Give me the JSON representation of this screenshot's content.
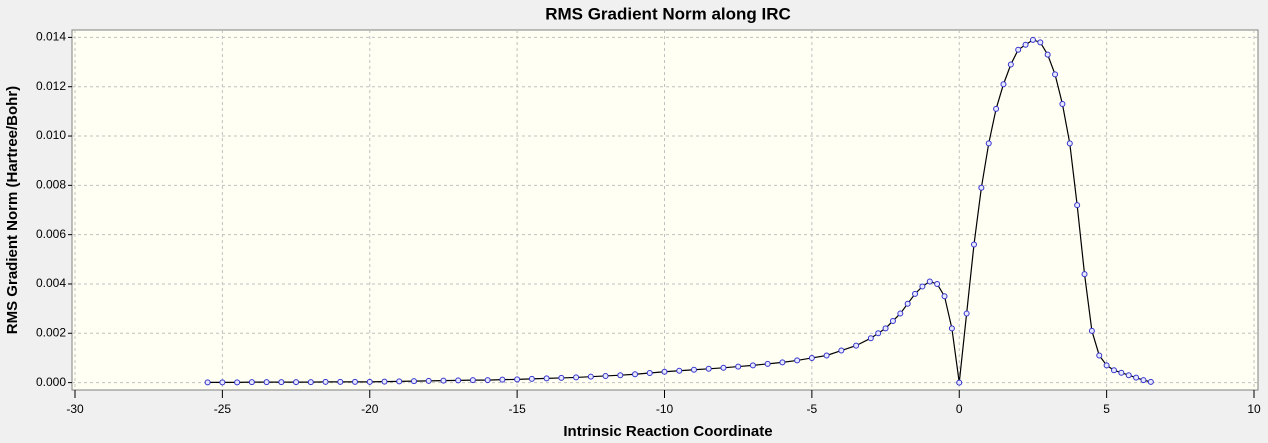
{
  "chart_data": {
    "type": "line",
    "title": "RMS Gradient Norm along IRC",
    "x_label": "Intrinsic Reaction Coordinate",
    "y_label": "RMS Gradient Norm (Hartree/Bohr)",
    "x": [
      -25.5,
      -25,
      -24.5,
      -24,
      -23.5,
      -23,
      -22.5,
      -22,
      -21.5,
      -21,
      -20.5,
      -20,
      -19.5,
      -19,
      -18.5,
      -18,
      -17.5,
      -17,
      -16.5,
      -16,
      -15.5,
      -15,
      -14.5,
      -14,
      -13.5,
      -13,
      -12.5,
      -12,
      -11.5,
      -11,
      -10.5,
      -10,
      -9.5,
      -9,
      -8.5,
      -8,
      -7.5,
      -7,
      -6.5,
      -6,
      -5.5,
      -5,
      -4.5,
      -4,
      -3.5,
      -3,
      -2.75,
      -2.5,
      -2.25,
      -2,
      -1.75,
      -1.5,
      -1.25,
      -1,
      -0.75,
      -0.5,
      -0.25,
      0,
      0.25,
      0.5,
      0.75,
      1,
      1.25,
      1.5,
      1.75,
      2,
      2.25,
      2.5,
      2.75,
      3,
      3.25,
      3.5,
      3.75,
      4,
      4.25,
      4.5,
      4.75,
      5,
      5.25,
      5.5,
      5.75,
      6,
      6.25,
      6.5
    ],
    "series": [
      {
        "name": "RMS Gradient Norm",
        "color": "#000000",
        "marker_color": "#3333cc",
        "values": [
          1e-05,
          1e-05,
          1e-05,
          2e-05,
          2e-05,
          2e-05,
          2e-05,
          2e-05,
          3e-05,
          3e-05,
          3e-05,
          3e-05,
          4e-05,
          5e-05,
          6e-05,
          7e-05,
          8e-05,
          9e-05,
          0.0001,
          0.0001,
          0.00012,
          0.00013,
          0.00015,
          0.00017,
          0.00019,
          0.00021,
          0.00024,
          0.00027,
          0.0003,
          0.00034,
          0.00039,
          0.00044,
          0.00048,
          0.00052,
          0.00056,
          0.0006,
          0.00065,
          0.0007,
          0.00076,
          0.00082,
          0.0009,
          0.001,
          0.0011,
          0.0013,
          0.0015,
          0.0018,
          0.002,
          0.0022,
          0.0025,
          0.0028,
          0.0032,
          0.0036,
          0.0039,
          0.0041,
          0.004,
          0.0035,
          0.0022,
          0,
          0.0028,
          0.0056,
          0.0079,
          0.0097,
          0.0111,
          0.0121,
          0.0129,
          0.0135,
          0.0137,
          0.0139,
          0.0138,
          0.0133,
          0.0125,
          0.0113,
          0.0097,
          0.0072,
          0.0044,
          0.0021,
          0.0011,
          0.0007,
          0.0005,
          0.0004,
          0.0003,
          0.0002,
          0.0001,
          3e-05
        ]
      }
    ],
    "xlim": [
      -30,
      10
    ],
    "xticks": [
      -30,
      -25,
      -20,
      -15,
      -10,
      -5,
      0,
      5,
      10
    ],
    "ylim": [
      -0.0003,
      0.0143
    ],
    "yticks": [
      {
        "value": 0,
        "label": "0.000"
      },
      {
        "value": 0.002,
        "label": "0.002"
      },
      {
        "value": 0.004,
        "label": "0.004"
      },
      {
        "value": 0.006,
        "label": "0.006"
      },
      {
        "value": 0.008,
        "label": "0.008"
      },
      {
        "value": 0.01,
        "label": "0.010"
      },
      {
        "value": 0.012,
        "label": "0.012"
      },
      {
        "value": 0.014,
        "label": "0.014"
      }
    ],
    "grid": true
  }
}
